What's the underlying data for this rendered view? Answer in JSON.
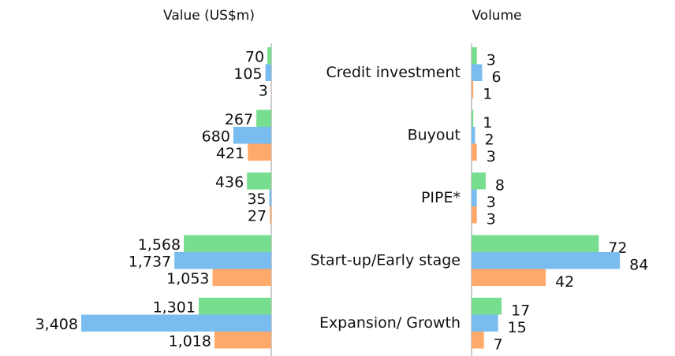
{
  "chart_data": [
    {
      "type": "hbar",
      "title": "Value (US$m)",
      "reversed": true,
      "xlim": [
        0,
        3500
      ],
      "series": [
        {
          "color": "#77dd8f",
          "values": [
            70,
            267,
            436,
            1568,
            1301
          ],
          "value_labels": [
            "70",
            "267",
            "436",
            "1,568",
            "1,301"
          ]
        },
        {
          "color": "#79bdf0",
          "values": [
            105,
            680,
            35,
            1737,
            3408
          ],
          "value_labels": [
            "105",
            "680",
            "35",
            "1,737",
            "3,408"
          ]
        },
        {
          "color": "#ffa96b",
          "values": [
            3,
            421,
            27,
            1053,
            1018
          ],
          "value_labels": [
            "3",
            "421",
            "27",
            "1,053",
            "1,018"
          ]
        }
      ]
    },
    {
      "type": "hbar",
      "title": "Volume",
      "reversed": false,
      "xlim": [
        0,
        90
      ],
      "categories": [
        "Credit investment",
        "Buyout",
        "PIPE*",
        "Start-up/Early stage",
        "Expansion/ Growth"
      ],
      "series": [
        {
          "color": "#77dd8f",
          "values": [
            3,
            1,
            8,
            72,
            17
          ]
        },
        {
          "color": "#79bdf0",
          "values": [
            6,
            2,
            3,
            84,
            15
          ]
        },
        {
          "color": "#ffa96b",
          "values": [
            1,
            3,
            3,
            42,
            7
          ]
        }
      ]
    }
  ]
}
